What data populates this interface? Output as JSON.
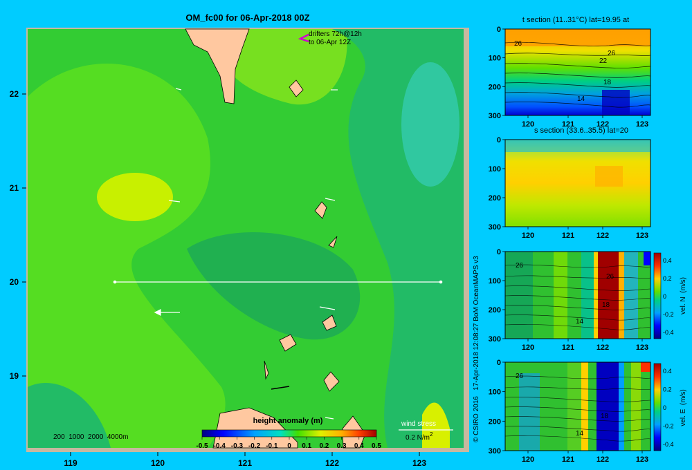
{
  "page": {
    "background": "#00ccff"
  },
  "map": {
    "title": "OM_fc00 for 06-Apr-2018 00Z",
    "drifters_line1": "drifters 72h@12h",
    "drifters_line2": "to 06-Apr 12Z",
    "depth_legend": "200  1000  2000  4000m",
    "wind_stress_label": "wind stress",
    "wind_stress_scale": "0.2 N/m",
    "wind_stress_exp": "2",
    "colorbar_title": "height anomaly  (m)",
    "colorbar_ticks": [
      "-0.5",
      "-0.4",
      "-0.3",
      "-0.2",
      "-0.1",
      "0",
      "0.1",
      "0.2",
      "0.3",
      "0.4",
      "0.5"
    ],
    "x_ticks": [
      "119",
      "120",
      "121",
      "122",
      "123"
    ],
    "y_ticks": [
      "22",
      "21",
      "20",
      "19"
    ],
    "credit": "© CSIRO 2016   17-Apr-2018 12:08:27 BoM OceanMAPS v3"
  },
  "chart_data": [
    {
      "type": "heatmap",
      "title": "OM_fc00 for 06-Apr-2018 00Z",
      "variable": "height anomaly  (m)",
      "x_ticks": [
        119,
        120,
        121,
        122,
        123
      ],
      "y_ticks": [
        22,
        21,
        20,
        19
      ],
      "xlim": [
        118.5,
        123.5
      ],
      "ylim": [
        18.3,
        22.7
      ],
      "colorbar_range": [
        -0.5,
        0.5
      ],
      "section_line": {
        "lat": 20,
        "lon_start": 119.5,
        "lon_end": 123.2
      }
    },
    {
      "type": "heatmap",
      "title": "t section (11..31°C) lat=19.95 at",
      "x_ticks": [
        "120",
        "121",
        "122",
        "123"
      ],
      "y_ticks": [
        "0",
        "100",
        "200",
        "300"
      ],
      "contour_labels": [
        "26",
        "26",
        "22",
        "18",
        "14"
      ]
    },
    {
      "type": "heatmap",
      "title": "s section (33.6..35.5) lat=20",
      "x_ticks": [
        "120",
        "121",
        "122",
        "123"
      ],
      "y_ticks": [
        "0",
        "100",
        "200",
        "300"
      ]
    },
    {
      "type": "heatmap",
      "title": "",
      "variable": "vel. N (m/s)",
      "x_ticks": [
        "120",
        "121",
        "122",
        "123"
      ],
      "y_ticks": [
        "0",
        "100",
        "200",
        "300"
      ],
      "colorbar_ticks": [
        "0.4",
        "0.2",
        "0",
        "-0.2",
        "-0.4"
      ],
      "contour_labels": [
        "26",
        "26",
        "18",
        "14"
      ]
    },
    {
      "type": "heatmap",
      "title": "",
      "variable": "vel. E (m/s)",
      "x_ticks": [
        "120",
        "121",
        "122",
        "123"
      ],
      "y_ticks": [
        "0",
        "100",
        "200",
        "300"
      ],
      "colorbar_ticks": [
        "0.4",
        "0.2",
        "0",
        "-0.2",
        "-0.4"
      ],
      "contour_labels": [
        "26",
        "18",
        "14"
      ]
    }
  ],
  "panels": {
    "p1_title": "t section (11..31°C) lat=19.95 at",
    "p2_title": "s section (33.6..35.5) lat=20",
    "p3_cbar_label": "vel. N  (m/s)",
    "p4_cbar_label": "vel. E  (m/s)",
    "x_ticks": [
      "120",
      "121",
      "122",
      "123"
    ],
    "y_ticks": [
      "0",
      "100",
      "200",
      "300"
    ],
    "cbar_ticks": [
      "0.4",
      "0.2",
      "0",
      "-0.2",
      "-0.4"
    ],
    "p1_labels": [
      "26",
      "26",
      "22",
      "18",
      "14"
    ],
    "p3_labels": [
      "26",
      "26",
      "18",
      "14"
    ],
    "p4_labels": [
      "26",
      "18",
      "14"
    ]
  }
}
